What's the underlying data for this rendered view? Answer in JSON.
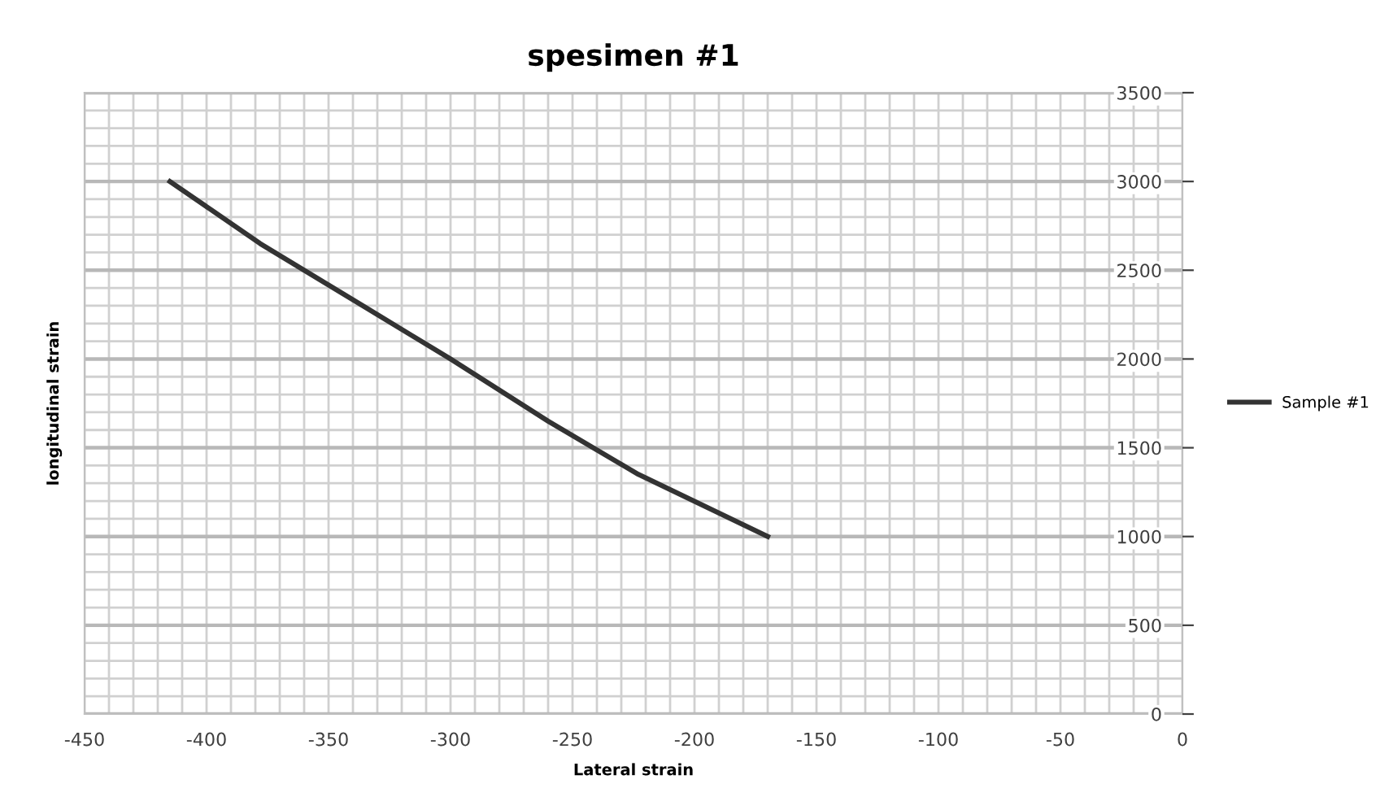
{
  "chart_data": {
    "type": "line",
    "title": "spesimen #1",
    "xlabel": "Lateral strain",
    "ylabel": "longitudinal strain",
    "xlim": [
      -450,
      0
    ],
    "xticks": [
      -450,
      -400,
      -350,
      -300,
      -250,
      -200,
      -150,
      -100,
      -50,
      0
    ],
    "ylim": [
      0,
      3500
    ],
    "yticks": [
      0,
      500,
      1000,
      1500,
      2000,
      2500,
      3000,
      3500
    ],
    "grid": true,
    "legend": "right",
    "marker": "none",
    "line_style": "solid",
    "series": [
      {
        "name": "Sample #1",
        "color": "#333333",
        "x": [
          -415,
          -378,
          -336,
          -300,
          -260,
          -223,
          -170
        ],
        "values": [
          3000,
          2650,
          2300,
          2000,
          1650,
          1350,
          1000
        ]
      }
    ]
  }
}
